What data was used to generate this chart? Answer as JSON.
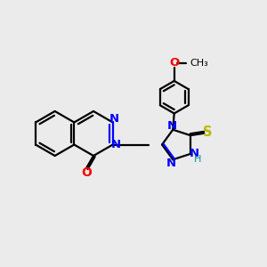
{
  "bg_color": "#ebebeb",
  "bond_color": "#000000",
  "N_color": "#0000ff",
  "O_color": "#ff0000",
  "S_color": "#b8b800",
  "line_width": 1.6,
  "font_size": 9.5,
  "fig_size": [
    3.0,
    3.0
  ],
  "dpi": 100,
  "xlim": [
    0,
    10
  ],
  "ylim": [
    0,
    10
  ]
}
